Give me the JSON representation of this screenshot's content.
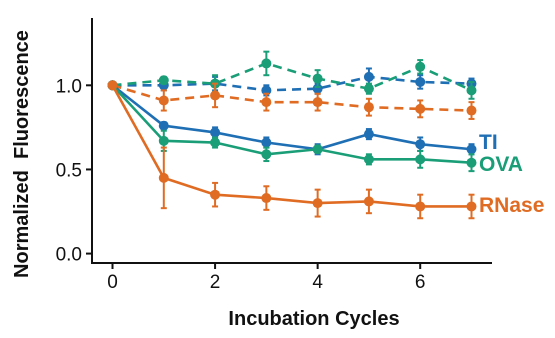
{
  "chart_data": {
    "type": "line",
    "title": "",
    "xlabel": "Incubation Cycles",
    "ylabel": "Normalized  Fluorescence",
    "xlim": [
      -0.4,
      7.4
    ],
    "ylim": [
      -0.05,
      1.4
    ],
    "xticks": [
      0,
      2,
      4,
      6
    ],
    "xtick_labels": [
      "0",
      "2",
      "4",
      "6"
    ],
    "yticks": [
      0.0,
      0.5,
      1.0
    ],
    "ytick_labels": [
      "0.0",
      "0.5",
      "1.0"
    ],
    "grid": false,
    "legend": "direct labels at right end of solid lines",
    "x": [
      0,
      1,
      2,
      3,
      4,
      5,
      6,
      7
    ],
    "series": [
      {
        "name": "TI",
        "label": "TI",
        "color": "#1f6fb5",
        "style": "solid",
        "values": [
          1.0,
          0.76,
          0.72,
          0.66,
          0.62,
          0.71,
          0.65,
          0.62
        ],
        "errors": [
          0.0,
          0.02,
          0.03,
          0.03,
          0.03,
          0.03,
          0.04,
          0.03
        ]
      },
      {
        "name": "OVA",
        "label": "OVA",
        "color": "#1a9e77",
        "style": "solid",
        "values": [
          1.0,
          0.67,
          0.66,
          0.59,
          0.62,
          0.56,
          0.56,
          0.54
        ],
        "errors": [
          0.0,
          0.06,
          0.03,
          0.04,
          0.02,
          0.03,
          0.05,
          0.05
        ]
      },
      {
        "name": "RNase",
        "label": "RNase",
        "color": "#e06c24",
        "style": "solid",
        "values": [
          1.0,
          0.45,
          0.35,
          0.33,
          0.3,
          0.31,
          0.28,
          0.28
        ],
        "errors": [
          0.0,
          0.18,
          0.07,
          0.07,
          0.08,
          0.07,
          0.07,
          0.07
        ]
      },
      {
        "name": "TI-dashed",
        "label": "",
        "color": "#1f6fb5",
        "style": "dashed",
        "values": [
          1.0,
          1.0,
          1.01,
          0.97,
          0.98,
          1.05,
          1.02,
          1.01
        ],
        "errors": [
          0.0,
          0.03,
          0.04,
          0.03,
          0.03,
          0.05,
          0.04,
          0.03
        ]
      },
      {
        "name": "OVA-dashed",
        "label": "",
        "color": "#1a9e77",
        "style": "dashed",
        "values": [
          1.0,
          1.03,
          1.01,
          1.13,
          1.04,
          0.98,
          1.11,
          0.97
        ],
        "errors": [
          0.0,
          0.02,
          0.05,
          0.07,
          0.05,
          0.03,
          0.04,
          0.05
        ]
      },
      {
        "name": "RNase-dashed",
        "label": "",
        "color": "#e06c24",
        "style": "dashed",
        "values": [
          1.0,
          0.91,
          0.94,
          0.9,
          0.9,
          0.87,
          0.86,
          0.85
        ],
        "errors": [
          0.0,
          0.06,
          0.07,
          0.05,
          0.05,
          0.05,
          0.05,
          0.05
        ]
      }
    ]
  }
}
